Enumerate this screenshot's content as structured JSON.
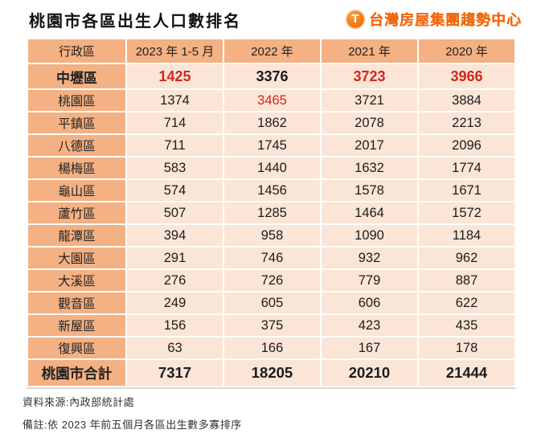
{
  "title": "桃園市各區出生人口數排名",
  "brand": {
    "name": "台灣房屋集團趨勢中心",
    "logo_glyph": "T"
  },
  "colors": {
    "accent_orange": "#F4B183",
    "cell_bg": "#FBE5D6",
    "highlight_red": "#D3261C",
    "brand_orange": "#F2670D"
  },
  "chart_data": {
    "type": "table",
    "title": "桃園市各區出生人口數排名",
    "columns": [
      "行政區",
      "2023 年 1-5 月",
      "2022 年",
      "2021 年",
      "2020 年"
    ],
    "rows": [
      {
        "label": "中壢區",
        "values": [
          1425,
          3376,
          3723,
          3966
        ],
        "bold": true,
        "red_value_indexes": [
          0,
          2,
          3
        ]
      },
      {
        "label": "桃園區",
        "values": [
          1374,
          3465,
          3721,
          3884
        ],
        "red_value_indexes": [
          1
        ]
      },
      {
        "label": "平鎮區",
        "values": [
          714,
          1862,
          2078,
          2213
        ]
      },
      {
        "label": "八德區",
        "values": [
          711,
          1745,
          2017,
          2096
        ]
      },
      {
        "label": "楊梅區",
        "values": [
          583,
          1440,
          1632,
          1774
        ]
      },
      {
        "label": "龜山區",
        "values": [
          574,
          1456,
          1578,
          1671
        ]
      },
      {
        "label": "蘆竹區",
        "values": [
          507,
          1285,
          1464,
          1572
        ]
      },
      {
        "label": "龍潭區",
        "values": [
          394,
          958,
          1090,
          1184
        ]
      },
      {
        "label": "大園區",
        "values": [
          291,
          746,
          932,
          962
        ]
      },
      {
        "label": "大溪區",
        "values": [
          276,
          726,
          779,
          887
        ]
      },
      {
        "label": "觀音區",
        "values": [
          249,
          605,
          606,
          622
        ]
      },
      {
        "label": "新屋區",
        "values": [
          156,
          375,
          423,
          435
        ]
      },
      {
        "label": "復興區",
        "values": [
          63,
          166,
          167,
          178
        ]
      }
    ],
    "total": {
      "label": "桃園市合計",
      "values": [
        7317,
        18205,
        20210,
        21444
      ]
    },
    "layout": "header row and first column shaded orange, data cells light peach, column-max values in red"
  },
  "footnotes": {
    "source": "資料來源:內政部統計處",
    "note": "備註:依 2023 年前五個月各區出生數多寡排序"
  }
}
